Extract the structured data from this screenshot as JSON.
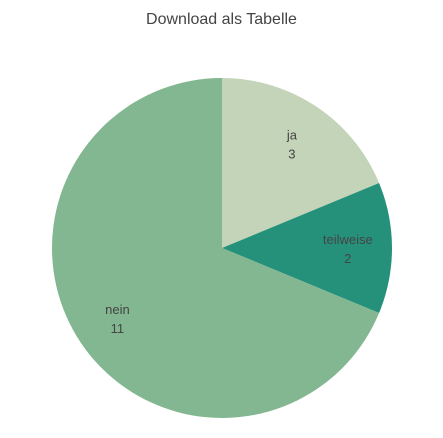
{
  "header": {
    "download_label": "Download als Tabelle"
  },
  "chart_data": {
    "type": "pie",
    "categories": [
      "ja",
      "teilweise",
      "nein"
    ],
    "values": [
      3,
      2,
      11
    ],
    "colors": [
      "#c3d4b9",
      "#26917a",
      "#82b791"
    ],
    "start": "top, clockwise",
    "title": ""
  }
}
